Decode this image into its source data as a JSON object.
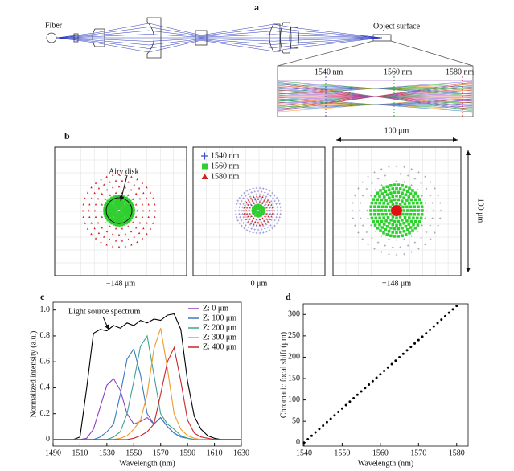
{
  "panels": [
    "a",
    "b",
    "c",
    "d"
  ],
  "panel_a": {
    "fiber": "Fiber",
    "object": "Object surface",
    "wavelengths": [
      "1540 nm",
      "1560 nm",
      "1580 nm"
    ]
  },
  "panel_b": {
    "legend": [
      "1540 nm",
      "1560 nm",
      "1580 nm"
    ],
    "annotation": "Airy disk",
    "scale": "100 μm",
    "positions": [
      "−148 μm",
      "0 μm",
      "+148 μm"
    ]
  },
  "chart_data": [
    {
      "type": "line",
      "x_label": "Wavelength (nm)",
      "y_label": "Normalized intensity (a.u.)",
      "x": [
        1490,
        1495,
        1500,
        1505,
        1510,
        1515,
        1520,
        1525,
        1530,
        1535,
        1540,
        1545,
        1550,
        1555,
        1560,
        1565,
        1570,
        1575,
        1580,
        1585,
        1590,
        1595,
        1600,
        1605,
        1610,
        1615,
        1620,
        1625,
        1630
      ],
      "series": [
        {
          "name": "Light source spectrum",
          "color": "#000000",
          "values": [
            0,
            0,
            0,
            0,
            0.02,
            0.4,
            0.82,
            0.85,
            0.84,
            0.88,
            0.86,
            0.9,
            0.88,
            0.92,
            0.9,
            0.93,
            0.92,
            0.96,
            0.97,
            0.85,
            0.45,
            0.18,
            0.08,
            0.03,
            0.01,
            0,
            0,
            0,
            0
          ]
        },
        {
          "name": "Z: 0 μm",
          "color": "#8e3fbf",
          "values": [
            0,
            0,
            0,
            0,
            0,
            0.01,
            0.08,
            0.25,
            0.42,
            0.47,
            0.38,
            0.2,
            0.12,
            0.14,
            0.17,
            0.12,
            0.17,
            0.1,
            0.05,
            0.02,
            0.01,
            0,
            0,
            0,
            0,
            0,
            0,
            0,
            0
          ]
        },
        {
          "name": "Z: 100 μm",
          "color": "#3a78c2",
          "values": [
            0,
            0,
            0,
            0,
            0,
            0,
            0,
            0.02,
            0.06,
            0.12,
            0.35,
            0.62,
            0.7,
            0.5,
            0.2,
            0.12,
            0.17,
            0.1,
            0.05,
            0.02,
            0.01,
            0,
            0,
            0,
            0,
            0,
            0,
            0,
            0
          ]
        },
        {
          "name": "Z: 200 μm",
          "color": "#3fa28f",
          "values": [
            0,
            0,
            0,
            0,
            0,
            0,
            0,
            0,
            0,
            0.02,
            0.06,
            0.2,
            0.45,
            0.72,
            0.8,
            0.5,
            0.2,
            0.12,
            0.08,
            0.03,
            0.01,
            0,
            0,
            0,
            0,
            0,
            0,
            0,
            0
          ]
        },
        {
          "name": "Z: 300 μm",
          "color": "#f09a2a",
          "values": [
            0,
            0,
            0,
            0,
            0,
            0,
            0,
            0,
            0,
            0,
            0.01,
            0.03,
            0.08,
            0.15,
            0.35,
            0.7,
            0.86,
            0.55,
            0.2,
            0.08,
            0.03,
            0.01,
            0,
            0,
            0,
            0,
            0,
            0,
            0
          ]
        },
        {
          "name": "Z: 400 μm",
          "color": "#c8242a",
          "values": [
            0,
            0,
            0,
            0,
            0,
            0,
            0,
            0,
            0,
            0,
            0,
            0,
            0.01,
            0.03,
            0.06,
            0.12,
            0.35,
            0.6,
            0.71,
            0.45,
            0.15,
            0.05,
            0.02,
            0.01,
            0,
            0,
            0,
            0,
            0
          ]
        }
      ],
      "xlim": [
        1490,
        1630
      ],
      "xticks": [
        1490,
        1510,
        1530,
        1550,
        1570,
        1590,
        1610,
        1630
      ],
      "ylim": [
        -0.05,
        1.06
      ],
      "yticks": [
        0,
        0.2,
        0.4,
        0.6,
        0.8,
        {
          "value": 1,
          "label": "1.0"
        }
      ]
    },
    {
      "type": "scatter",
      "x_label": "Wavelength (nm)",
      "y_label": "Chromatic focal shift (μm)",
      "color": "#000000",
      "x": [
        1540,
        1541,
        1542,
        1543,
        1544,
        1545,
        1546,
        1547,
        1548,
        1549,
        1550,
        1551,
        1552,
        1553,
        1554,
        1555,
        1556,
        1557,
        1558,
        1559,
        1560,
        1561,
        1562,
        1563,
        1564,
        1565,
        1566,
        1567,
        1568,
        1569,
        1570,
        1571,
        1572,
        1573,
        1574,
        1575,
        1576,
        1577,
        1578,
        1579,
        1580
      ],
      "values": [
        0,
        8,
        16,
        24,
        32,
        40,
        48,
        56,
        64,
        72,
        80,
        88,
        96,
        104,
        112,
        120,
        128,
        136,
        144,
        152,
        160,
        168,
        176,
        184,
        192,
        200,
        208,
        216,
        224,
        232,
        240,
        248,
        256,
        264,
        272,
        280,
        288,
        296,
        304,
        312,
        320
      ],
      "xlim": [
        1539.8,
        1583
      ],
      "xticks": [
        1540,
        1550,
        1560,
        1570,
        1580
      ],
      "ylim": [
        -8,
        325
      ],
      "yticks": [
        0,
        50,
        100,
        150,
        200,
        250,
        300
      ]
    }
  ]
}
